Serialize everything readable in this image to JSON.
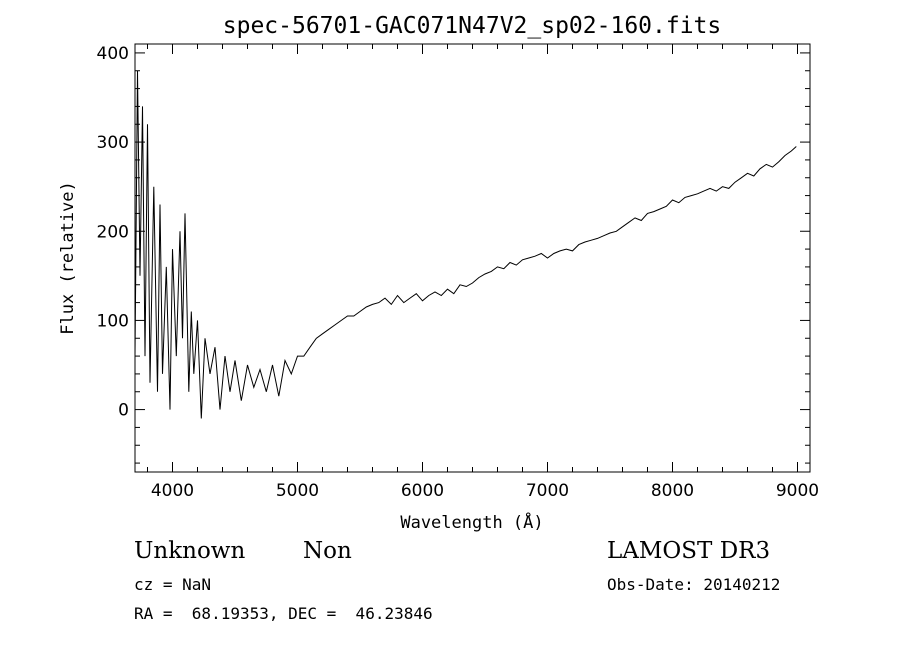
{
  "chart_data": {
    "type": "line",
    "title": "spec-56701-GAC071N47V2_sp02-160.fits",
    "xlabel": "Wavelength (Å)",
    "ylabel": "Flux (relative)",
    "xlim": [
      3700,
      9100
    ],
    "ylim": [
      -70,
      410
    ],
    "x_ticks": [
      4000,
      5000,
      6000,
      7000,
      8000,
      9000
    ],
    "y_ticks": [
      0,
      100,
      200,
      300,
      400
    ],
    "grid": false,
    "series": [
      {
        "x": [
          3700,
          3720,
          3740,
          3760,
          3780,
          3800,
          3820,
          3850,
          3880,
          3900,
          3920,
          3950,
          3980,
          4000,
          4030,
          4060,
          4080,
          4100,
          4130,
          4150,
          4170,
          4200,
          4230,
          4260,
          4300,
          4340,
          4380,
          4420,
          4460,
          4500,
          4550,
          4600,
          4650,
          4700,
          4750,
          4800,
          4850,
          4900,
          4950,
          5000,
          5050,
          5100,
          5150,
          5200,
          5250,
          5300,
          5350,
          5400,
          5450,
          5500,
          5550,
          5600,
          5650,
          5700,
          5750,
          5800,
          5850,
          5900,
          5950,
          6000,
          6050,
          6100,
          6150,
          6200,
          6250,
          6300,
          6350,
          6400,
          6450,
          6500,
          6550,
          6600,
          6650,
          6700,
          6750,
          6800,
          6850,
          6900,
          6950,
          7000,
          7050,
          7100,
          7150,
          7200,
          7250,
          7300,
          7350,
          7400,
          7450,
          7500,
          7550,
          7600,
          7650,
          7700,
          7750,
          7800,
          7850,
          7900,
          7950,
          8000,
          8050,
          8100,
          8150,
          8200,
          8250,
          8300,
          8350,
          8400,
          8450,
          8500,
          8550,
          8600,
          8650,
          8700,
          8750,
          8800,
          8850,
          8900,
          8950,
          8990
        ],
        "y": [
          60,
          380,
          150,
          340,
          60,
          320,
          30,
          250,
          20,
          230,
          40,
          160,
          0,
          180,
          60,
          200,
          80,
          220,
          20,
          110,
          40,
          100,
          -10,
          80,
          40,
          70,
          0,
          60,
          20,
          55,
          10,
          50,
          25,
          45,
          20,
          50,
          15,
          55,
          40,
          60,
          60,
          70,
          80,
          85,
          90,
          95,
          100,
          105,
          105,
          110,
          115,
          118,
          120,
          125,
          118,
          128,
          120,
          125,
          130,
          122,
          128,
          132,
          128,
          135,
          130,
          140,
          138,
          142,
          148,
          152,
          155,
          160,
          158,
          165,
          162,
          168,
          170,
          172,
          175,
          170,
          175,
          178,
          180,
          178,
          185,
          188,
          190,
          192,
          195,
          198,
          200,
          205,
          210,
          215,
          212,
          220,
          222,
          225,
          228,
          235,
          232,
          238,
          240,
          242,
          245,
          248,
          245,
          250,
          248,
          255,
          260,
          265,
          262,
          270,
          275,
          272,
          278,
          285,
          290,
          295
        ]
      }
    ]
  },
  "info": {
    "class": "Unknown",
    "subclass": "Non",
    "survey": "LAMOST DR3",
    "cz": "cz = NaN",
    "obs_date": "Obs-Date: 20140212",
    "coords": "RA =  68.19353, DEC =  46.23846"
  }
}
